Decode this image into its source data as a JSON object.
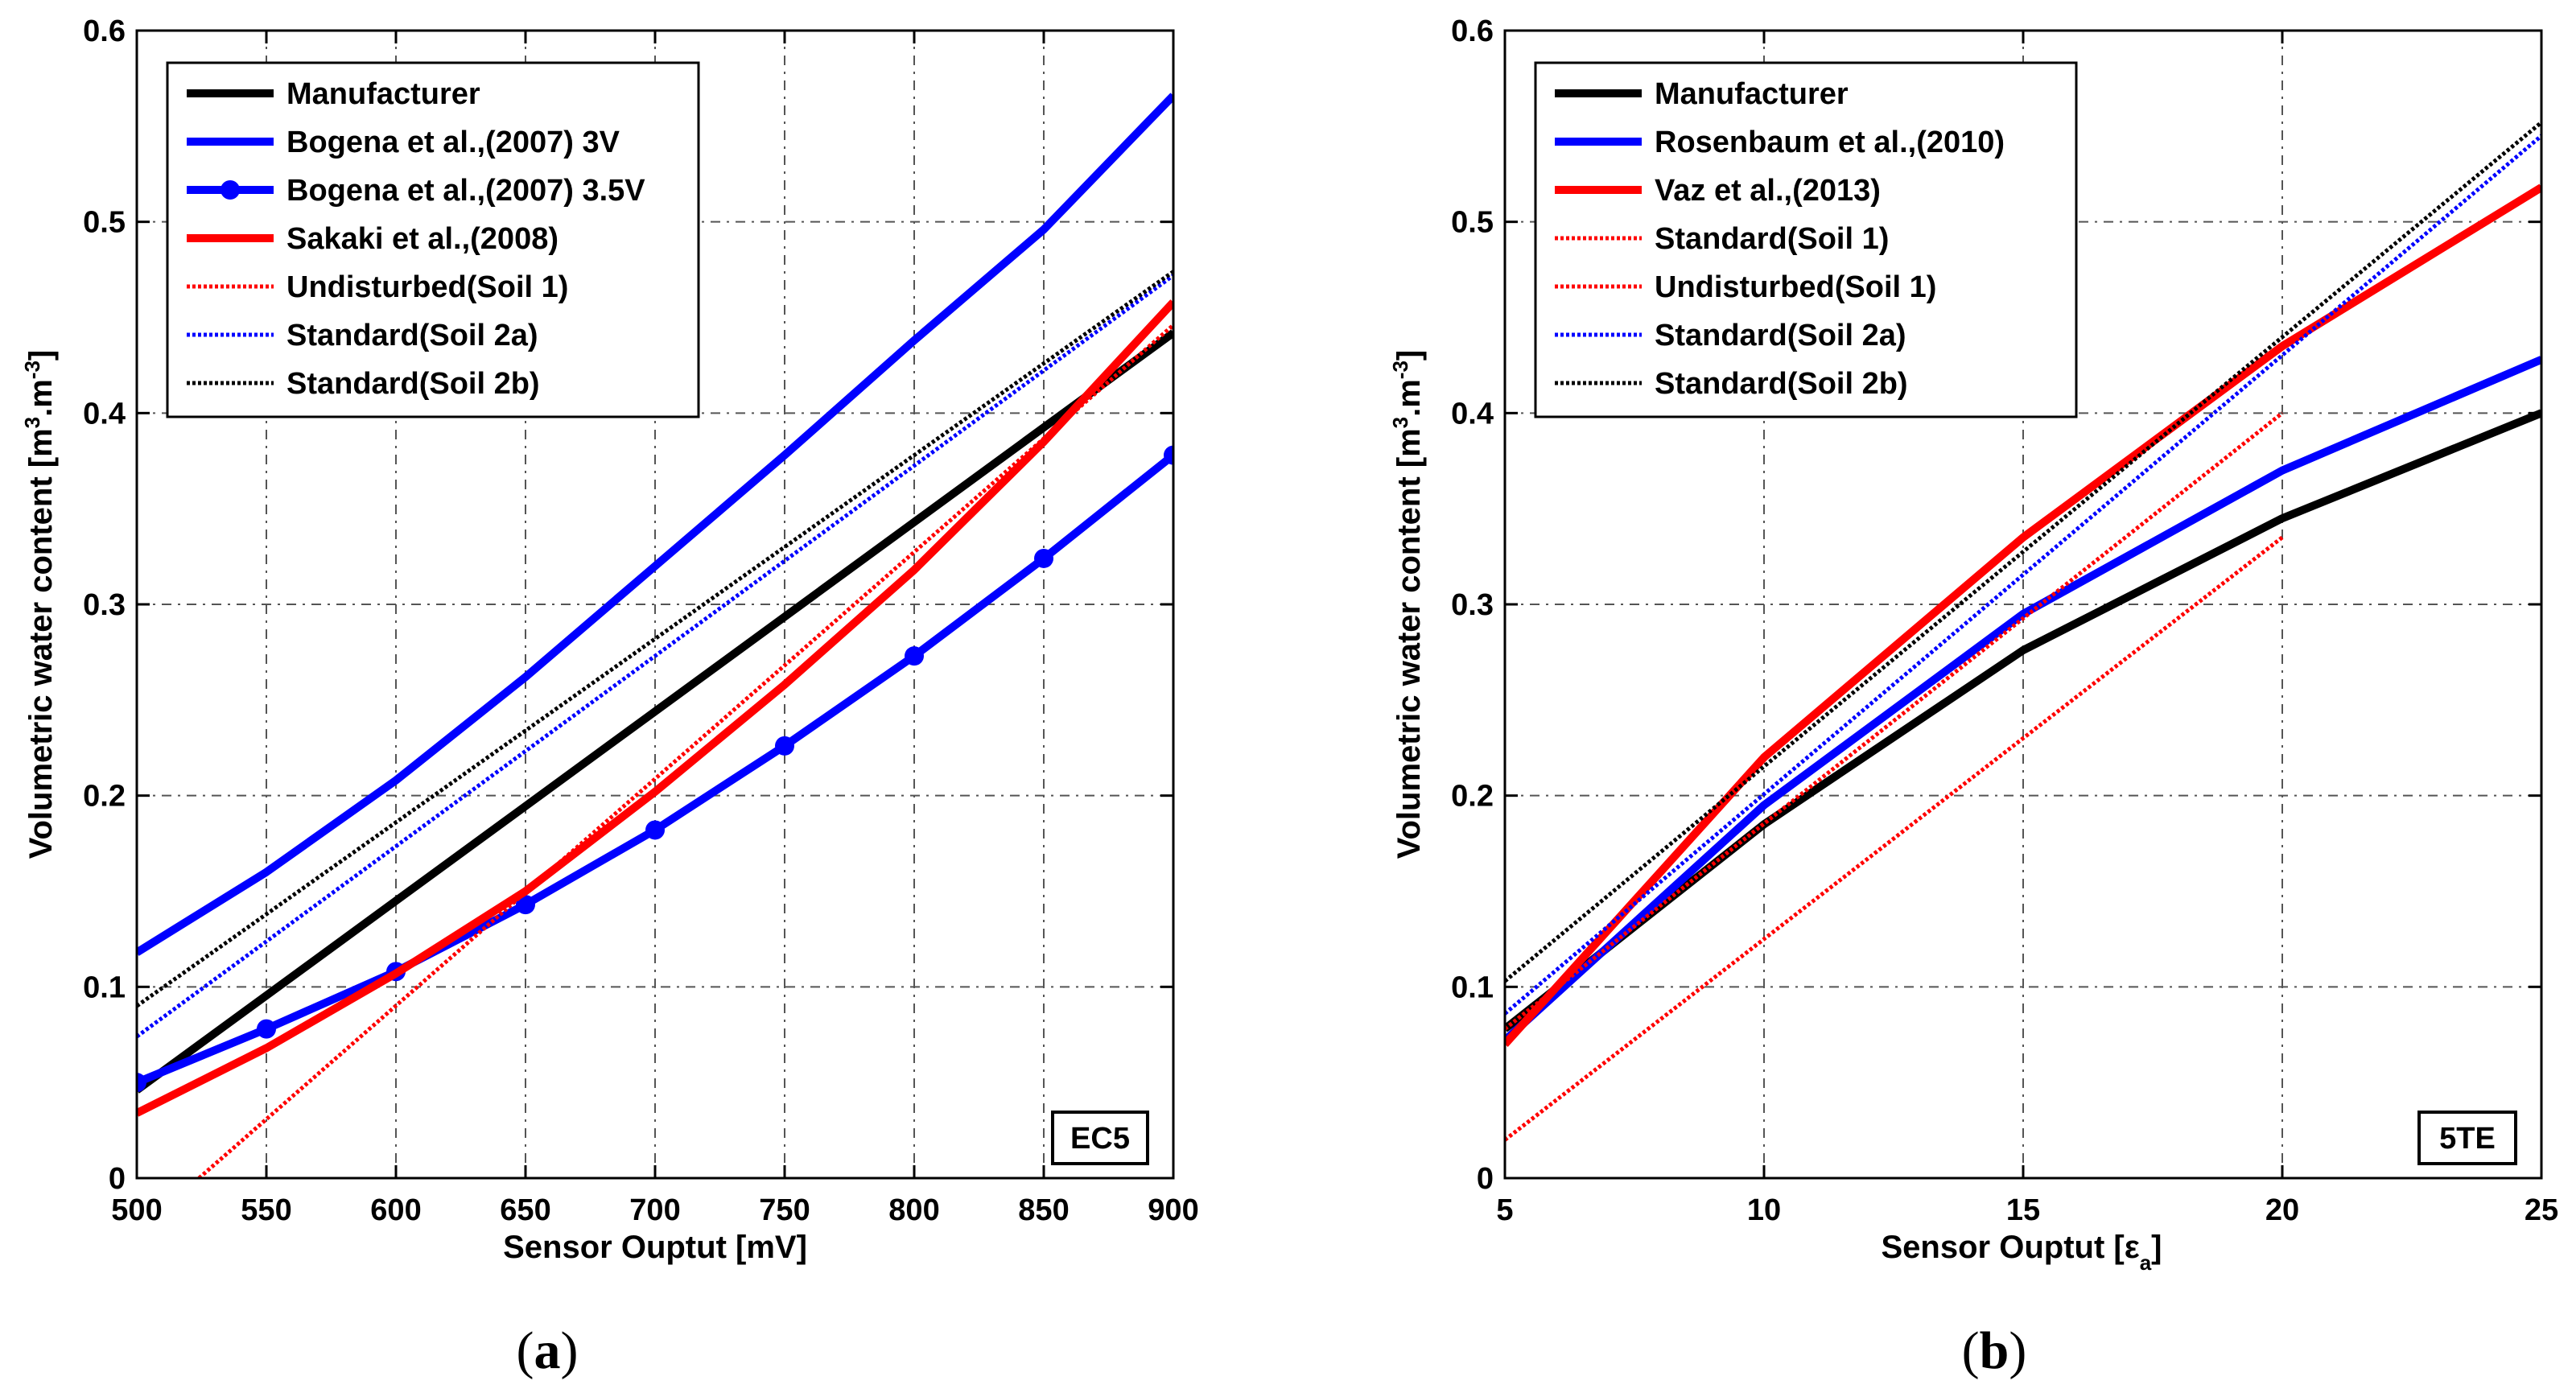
{
  "chart_data": [
    {
      "type": "line",
      "panel_label": "(a)",
      "panel_letter": "a",
      "tag": "EC5",
      "xlabel": "Sensor Ouptut [mV]",
      "ylabel": "Volumetric water content [m³.m⁻³]",
      "ylabel_parts": {
        "pre": "Volumetric water content [m",
        "sup1": "3",
        "mid": ".m",
        "sup2": "-3",
        "post": "]"
      },
      "xlim": [
        500,
        900
      ],
      "ylim": [
        0,
        0.6
      ],
      "xticks": [
        500,
        550,
        600,
        650,
        700,
        750,
        800,
        850,
        900
      ],
      "yticks": [
        0,
        0.1,
        0.2,
        0.3,
        0.4,
        0.5,
        0.6
      ],
      "xtick_labels": [
        "500",
        "550",
        "600",
        "650",
        "700",
        "750",
        "800",
        "850",
        "900"
      ],
      "ytick_labels": [
        "0",
        "0.1",
        "0.2",
        "0.3",
        "0.4",
        "0.5",
        "0.6"
      ],
      "grid": true,
      "legend_position": "top-left",
      "series": [
        {
          "name": "Manufacturer",
          "color": "#000000",
          "style": "solid",
          "x": [
            500,
            900
          ],
          "y": [
            0.046,
            0.442
          ]
        },
        {
          "name": "Bogena et al.,(2007) 3V",
          "color": "#0000ff",
          "style": "solid",
          "x": [
            500,
            550,
            600,
            650,
            700,
            750,
            800,
            850,
            900
          ],
          "y": [
            0.118,
            0.16,
            0.208,
            0.262,
            0.32,
            0.378,
            0.438,
            0.496,
            0.566
          ]
        },
        {
          "name": "Bogena et al.,(2007) 3.5V",
          "color": "#0000ff",
          "style": "solid",
          "marker": "circle",
          "x": [
            500,
            550,
            600,
            650,
            700,
            750,
            800,
            850,
            900
          ],
          "y": [
            0.05,
            0.078,
            0.108,
            0.143,
            0.182,
            0.226,
            0.273,
            0.324,
            0.378
          ]
        },
        {
          "name": "Sakaki et al.,(2008)",
          "color": "#ff0000",
          "style": "solid",
          "x": [
            500,
            550,
            600,
            650,
            700,
            750,
            800,
            850,
            900
          ],
          "y": [
            0.034,
            0.068,
            0.107,
            0.15,
            0.202,
            0.258,
            0.318,
            0.385,
            0.458
          ]
        },
        {
          "name": "Undisturbed(Soil 1)",
          "color": "#ff0000",
          "style": "dotted",
          "x": [
            524,
            900
          ],
          "y": [
            0.0,
            0.446
          ]
        },
        {
          "name": "Standard(Soil 2a)",
          "color": "#0000ff",
          "style": "dotted",
          "x": [
            500,
            900
          ],
          "y": [
            0.074,
            0.472
          ]
        },
        {
          "name": "Standard(Soil 2b)",
          "color": "#000000",
          "style": "dotted",
          "x": [
            500,
            900
          ],
          "y": [
            0.09,
            0.474
          ]
        }
      ]
    },
    {
      "type": "line",
      "panel_label": "(b)",
      "panel_letter": "b",
      "tag": "5TE",
      "xlabel": "Sensor Ouptut [εa]",
      "xlabel_parts": {
        "pre": "Sensor Ouptut [",
        "sym": "ε",
        "sub": "a",
        "post": "]"
      },
      "ylabel": "Volumetric water content [m³.m⁻³]",
      "ylabel_parts": {
        "pre": "Volumetric water content [m",
        "sup1": "3",
        "mid": ".m",
        "sup2": "-3",
        "post": "]"
      },
      "xlim": [
        5,
        25
      ],
      "ylim": [
        0,
        0.6
      ],
      "xticks": [
        5,
        10,
        15,
        20,
        25
      ],
      "yticks": [
        0,
        0.1,
        0.2,
        0.3,
        0.4,
        0.5,
        0.6
      ],
      "xtick_labels": [
        "5",
        "10",
        "15",
        "20",
        "25"
      ],
      "ytick_labels": [
        "0",
        "0.1",
        "0.2",
        "0.3",
        "0.4",
        "0.5",
        "0.6"
      ],
      "grid": true,
      "legend_position": "top-left",
      "series": [
        {
          "name": "Manufacturer",
          "color": "#000000",
          "style": "solid",
          "x": [
            5,
            10,
            15,
            20,
            25
          ],
          "y": [
            0.078,
            0.185,
            0.276,
            0.345,
            0.4
          ]
        },
        {
          "name": "Rosenbaum et al.,(2010)",
          "color": "#0000ff",
          "style": "solid",
          "x": [
            5,
            10,
            15,
            20,
            25
          ],
          "y": [
            0.072,
            0.195,
            0.295,
            0.37,
            0.428
          ]
        },
        {
          "name": "Vaz et al.,(2013)",
          "color": "#ff0000",
          "style": "solid",
          "x": [
            5,
            10,
            15,
            20,
            25
          ],
          "y": [
            0.07,
            0.22,
            0.335,
            0.435,
            0.518
          ]
        },
        {
          "name": "Standard(Soil 1)",
          "color": "#ff0000",
          "style": "dotted",
          "x": [
            5,
            20
          ],
          "y": [
            0.078,
            0.4
          ]
        },
        {
          "name": "Undisturbed(Soil 1)",
          "color": "#ff0000",
          "style": "dotted",
          "x": [
            5,
            20
          ],
          "y": [
            0.02,
            0.335
          ]
        },
        {
          "name": "Standard(Soil 2a)",
          "color": "#0000ff",
          "style": "dotted",
          "x": [
            5,
            25
          ],
          "y": [
            0.086,
            0.545
          ]
        },
        {
          "name": "Standard(Soil 2b)",
          "color": "#000000",
          "style": "dotted",
          "x": [
            5,
            25
          ],
          "y": [
            0.103,
            0.552
          ]
        }
      ]
    }
  ]
}
